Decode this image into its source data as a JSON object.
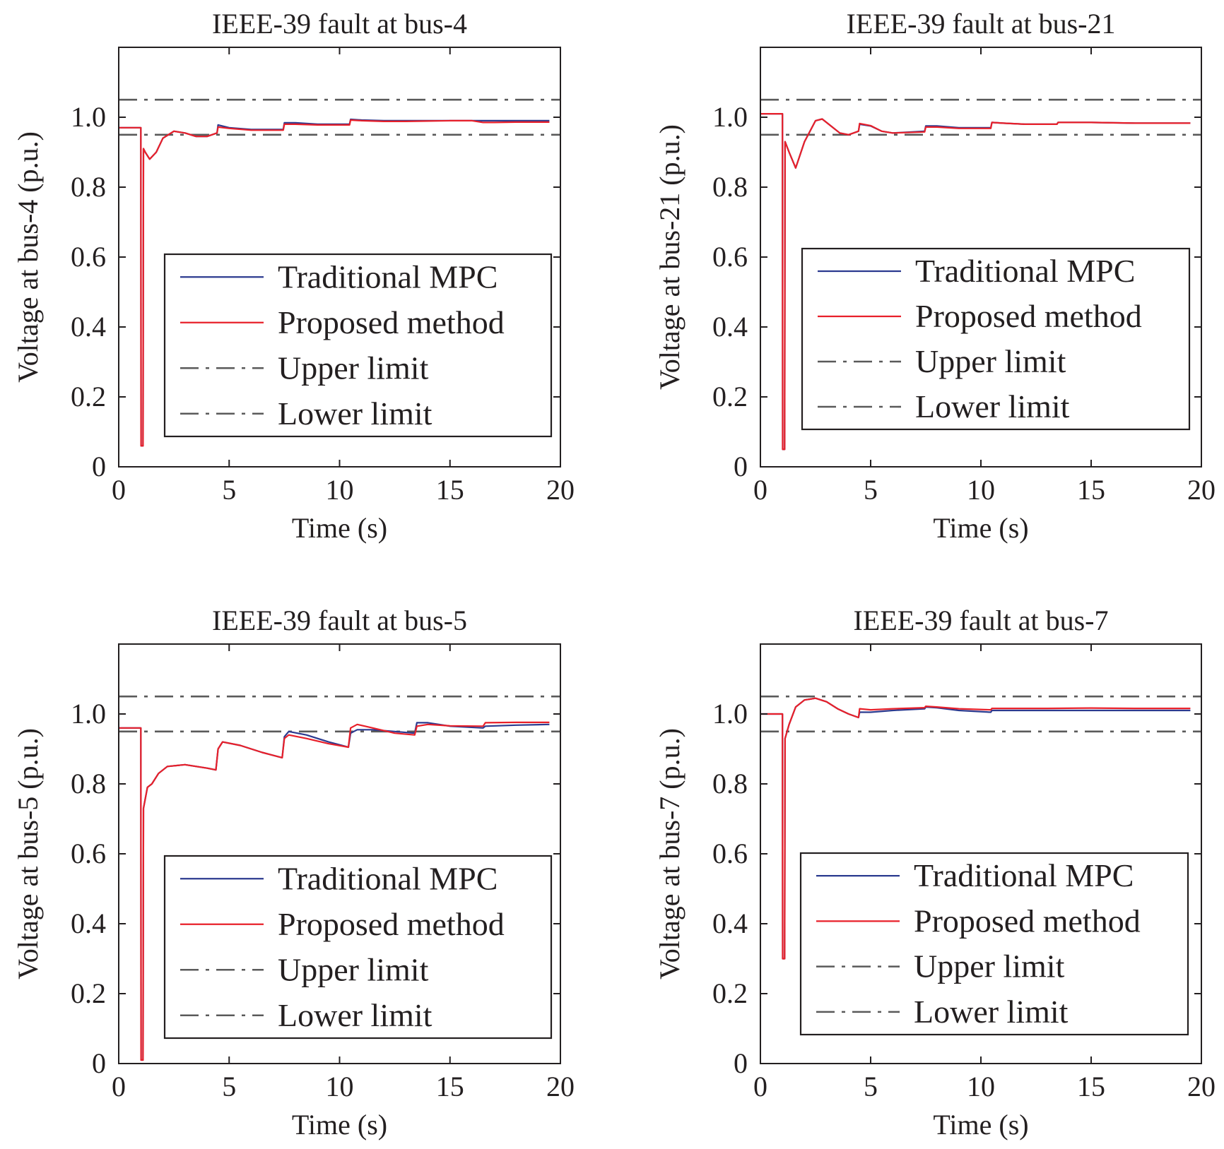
{
  "colors": {
    "traditional": "#2b3a8f",
    "proposed": "#e8202a",
    "limits": "#5a5a5a",
    "axes": "#231f20"
  },
  "chart_data": [
    {
      "type": "line",
      "title": "IEEE-39 fault at bus-4",
      "xlabel": "Time (s)",
      "ylabel": "Voltage at bus-4 (p.u.)",
      "xlim": [
        0,
        20
      ],
      "ylim": [
        0,
        1.2
      ],
      "xticks": [
        "0",
        "5",
        "10",
        "15",
        "20"
      ],
      "yticks": [
        "0",
        "0.2",
        "0.4",
        "0.6",
        "0.8",
        "1.0"
      ],
      "grid": false,
      "legend_position": "lower-right",
      "series": [
        {
          "name": "Traditional MPC",
          "style": "solid",
          "color_key": "traditional",
          "x": [
            0,
            1.0,
            1.01,
            1.05,
            1.1,
            1.12,
            1.2,
            1.4,
            1.7,
            2.0,
            2.5,
            3.0,
            3.5,
            4.0,
            4.45,
            4.5,
            5.0,
            6.0,
            7.45,
            7.5,
            8.0,
            9.0,
            10.45,
            10.5,
            11.0,
            12.0,
            13.0,
            14.0,
            15.0,
            16.0,
            17.0,
            18.0,
            19.5
          ],
          "y": [
            0.97,
            0.97,
            0.06,
            0.06,
            0.06,
            0.91,
            0.9,
            0.88,
            0.9,
            0.94,
            0.96,
            0.955,
            0.945,
            0.945,
            0.955,
            0.978,
            0.97,
            0.965,
            0.965,
            0.984,
            0.984,
            0.98,
            0.98,
            0.994,
            0.992,
            0.99,
            0.99,
            0.99,
            0.99,
            0.99,
            0.99,
            0.99,
            0.99
          ]
        },
        {
          "name": "Proposed method",
          "style": "solid",
          "color_key": "proposed",
          "x": [
            0,
            1.0,
            1.01,
            1.05,
            1.1,
            1.12,
            1.2,
            1.4,
            1.7,
            2.0,
            2.5,
            3.0,
            3.5,
            4.0,
            4.45,
            4.5,
            5.0,
            6.0,
            7.45,
            7.5,
            8.0,
            9.0,
            10.45,
            10.5,
            11.0,
            12.0,
            13.0,
            14.0,
            15.0,
            16.0,
            16.5,
            17.0,
            18.0,
            19.5
          ],
          "y": [
            0.97,
            0.97,
            0.06,
            0.06,
            0.06,
            0.91,
            0.9,
            0.88,
            0.9,
            0.94,
            0.96,
            0.955,
            0.945,
            0.945,
            0.955,
            0.972,
            0.968,
            0.963,
            0.963,
            0.98,
            0.98,
            0.978,
            0.978,
            0.992,
            0.99,
            0.988,
            0.988,
            0.989,
            0.99,
            0.99,
            0.985,
            0.985,
            0.986,
            0.986
          ]
        },
        {
          "name": "Upper limit",
          "style": "dashdot",
          "color_key": "limits",
          "x": [
            0,
            20
          ],
          "y": [
            1.05,
            1.05
          ]
        },
        {
          "name": "Lower limit",
          "style": "dashdot",
          "color_key": "limits",
          "x": [
            0,
            20
          ],
          "y": [
            0.95,
            0.95
          ]
        }
      ]
    },
    {
      "type": "line",
      "title": "IEEE-39 fault at bus-21",
      "xlabel": "Time (s)",
      "ylabel": "Voltage at bus-21 (p.u.)",
      "xlim": [
        0,
        20
      ],
      "ylim": [
        0,
        1.2
      ],
      "xticks": [
        "0",
        "5",
        "10",
        "15",
        "20"
      ],
      "yticks": [
        "0",
        "0.2",
        "0.4",
        "0.6",
        "0.8",
        "1.0"
      ],
      "grid": false,
      "legend_position": "lower-right",
      "series": [
        {
          "name": "Traditional MPC",
          "style": "solid",
          "color_key": "traditional",
          "x": [
            0,
            1.0,
            1.01,
            1.05,
            1.1,
            1.12,
            1.3,
            1.6,
            2.0,
            2.5,
            2.8,
            3.2,
            3.6,
            4.0,
            4.45,
            4.5,
            5.0,
            5.5,
            6.0,
            7.45,
            7.5,
            8.0,
            9.0,
            10.45,
            10.5,
            11.0,
            12.0,
            13.45,
            13.5,
            14.0,
            15.0,
            17.0,
            19.5
          ],
          "y": [
            1.01,
            1.01,
            0.05,
            0.05,
            0.05,
            0.93,
            0.9,
            0.855,
            0.93,
            0.99,
            0.995,
            0.975,
            0.955,
            0.95,
            0.96,
            0.98,
            0.975,
            0.96,
            0.955,
            0.96,
            0.975,
            0.975,
            0.97,
            0.97,
            0.985,
            0.983,
            0.98,
            0.98,
            0.985,
            0.985,
            0.985,
            0.983,
            0.983
          ]
        },
        {
          "name": "Proposed method",
          "style": "solid",
          "color_key": "proposed",
          "x": [
            0,
            1.0,
            1.01,
            1.05,
            1.1,
            1.12,
            1.3,
            1.6,
            2.0,
            2.5,
            2.8,
            3.2,
            3.6,
            4.0,
            4.45,
            4.5,
            5.0,
            5.5,
            6.0,
            7.45,
            7.5,
            8.0,
            9.0,
            10.45,
            10.5,
            11.0,
            12.0,
            13.45,
            13.5,
            14.0,
            15.0,
            17.0,
            19.5
          ],
          "y": [
            1.01,
            1.01,
            0.05,
            0.05,
            0.05,
            0.93,
            0.9,
            0.855,
            0.93,
            0.99,
            0.995,
            0.975,
            0.955,
            0.95,
            0.96,
            0.982,
            0.976,
            0.96,
            0.955,
            0.958,
            0.972,
            0.972,
            0.968,
            0.968,
            0.985,
            0.983,
            0.98,
            0.98,
            0.985,
            0.985,
            0.985,
            0.983,
            0.983
          ]
        },
        {
          "name": "Upper limit",
          "style": "dashdot",
          "color_key": "limits",
          "x": [
            0,
            20
          ],
          "y": [
            1.05,
            1.05
          ]
        },
        {
          "name": "Lower limit",
          "style": "dashdot",
          "color_key": "limits",
          "x": [
            0,
            20
          ],
          "y": [
            0.95,
            0.95
          ]
        }
      ]
    },
    {
      "type": "line",
      "title": "IEEE-39 fault at bus-5",
      "xlabel": "Time (s)",
      "ylabel": "Voltage at bus-5 (p.u.)",
      "xlim": [
        0,
        20
      ],
      "ylim": [
        0,
        1.2
      ],
      "xticks": [
        "0",
        "5",
        "10",
        "15",
        "20"
      ],
      "yticks": [
        "0",
        "0.2",
        "0.4",
        "0.6",
        "0.8",
        "1.0"
      ],
      "grid": false,
      "legend_position": "lower-right",
      "series": [
        {
          "name": "Traditional MPC",
          "style": "solid",
          "color_key": "traditional",
          "x": [
            0,
            1.0,
            1.01,
            1.05,
            1.1,
            1.12,
            1.3,
            1.5,
            1.8,
            2.2,
            3.0,
            4.0,
            4.4,
            4.5,
            4.7,
            5.5,
            6.5,
            7.4,
            7.5,
            7.7,
            8.5,
            9.5,
            10.4,
            10.5,
            10.8,
            11.5,
            12.5,
            13.4,
            13.5,
            14.0,
            15.0,
            16.5,
            16.6,
            18.0,
            19.5
          ],
          "y": [
            0.96,
            0.96,
            0.01,
            0.01,
            0.01,
            0.73,
            0.79,
            0.8,
            0.83,
            0.85,
            0.855,
            0.845,
            0.84,
            0.9,
            0.92,
            0.91,
            0.89,
            0.875,
            0.935,
            0.95,
            0.94,
            0.92,
            0.905,
            0.945,
            0.955,
            0.955,
            0.95,
            0.945,
            0.975,
            0.975,
            0.965,
            0.96,
            0.965,
            0.968,
            0.97
          ]
        },
        {
          "name": "Proposed method",
          "style": "solid",
          "color_key": "proposed",
          "x": [
            0,
            1.0,
            1.01,
            1.05,
            1.1,
            1.12,
            1.3,
            1.5,
            1.8,
            2.2,
            3.0,
            4.0,
            4.4,
            4.5,
            4.7,
            5.5,
            6.5,
            7.4,
            7.5,
            7.7,
            8.5,
            9.5,
            10.4,
            10.5,
            10.8,
            11.5,
            12.5,
            13.4,
            13.5,
            14.0,
            15.0,
            16.5,
            16.6,
            18.0,
            19.5
          ],
          "y": [
            0.96,
            0.96,
            0.01,
            0.01,
            0.01,
            0.73,
            0.79,
            0.8,
            0.83,
            0.85,
            0.855,
            0.845,
            0.84,
            0.9,
            0.92,
            0.91,
            0.89,
            0.875,
            0.93,
            0.94,
            0.93,
            0.915,
            0.905,
            0.96,
            0.97,
            0.96,
            0.945,
            0.94,
            0.965,
            0.97,
            0.966,
            0.965,
            0.975,
            0.976,
            0.976
          ]
        },
        {
          "name": "Upper limit",
          "style": "dashdot",
          "color_key": "limits",
          "x": [
            0,
            20
          ],
          "y": [
            1.05,
            1.05
          ]
        },
        {
          "name": "Lower limit",
          "style": "dashdot",
          "color_key": "limits",
          "x": [
            0,
            20
          ],
          "y": [
            0.95,
            0.95
          ]
        }
      ]
    },
    {
      "type": "line",
      "title": "IEEE-39 fault at bus-7",
      "xlabel": "Time (s)",
      "ylabel": "Voltage at bus-7 (p.u.)",
      "xlim": [
        0,
        20
      ],
      "ylim": [
        0,
        1.2
      ],
      "xticks": [
        "0",
        "5",
        "10",
        "15",
        "20"
      ],
      "yticks": [
        "0",
        "0.2",
        "0.4",
        "0.6",
        "0.8",
        "1.0"
      ],
      "grid": false,
      "legend_position": "lower-right",
      "series": [
        {
          "name": "Traditional MPC",
          "style": "solid",
          "color_key": "traditional",
          "x": [
            0,
            1.0,
            1.01,
            1.05,
            1.1,
            1.12,
            1.3,
            1.6,
            2.0,
            2.5,
            3.0,
            3.5,
            4.0,
            4.45,
            4.5,
            5.0,
            6.0,
            7.45,
            7.5,
            8.0,
            9.0,
            10.45,
            10.5,
            11.0,
            13.0,
            15.0,
            17.0,
            19.5
          ],
          "y": [
            1.0,
            1.0,
            0.3,
            0.3,
            0.3,
            0.93,
            0.97,
            1.02,
            1.04,
            1.045,
            1.035,
            1.015,
            1.0,
            0.99,
            1.005,
            1.005,
            1.01,
            1.015,
            1.02,
            1.018,
            1.01,
            1.005,
            1.01,
            1.01,
            1.01,
            1.01,
            1.01,
            1.01
          ]
        },
        {
          "name": "Proposed method",
          "style": "solid",
          "color_key": "proposed",
          "x": [
            0,
            1.0,
            1.01,
            1.05,
            1.1,
            1.12,
            1.3,
            1.6,
            2.0,
            2.5,
            3.0,
            3.5,
            4.0,
            4.45,
            4.5,
            5.0,
            6.0,
            7.45,
            7.5,
            8.0,
            9.0,
            10.45,
            10.5,
            11.0,
            13.0,
            15.0,
            17.0,
            19.5
          ],
          "y": [
            1.0,
            1.0,
            0.3,
            0.3,
            0.3,
            0.93,
            0.97,
            1.02,
            1.04,
            1.045,
            1.035,
            1.015,
            1.0,
            0.99,
            1.015,
            1.012,
            1.015,
            1.018,
            1.022,
            1.02,
            1.015,
            1.012,
            1.016,
            1.016,
            1.016,
            1.017,
            1.016,
            1.016
          ]
        },
        {
          "name": "Upper limit",
          "style": "dashdot",
          "color_key": "limits",
          "x": [
            0,
            20
          ],
          "y": [
            1.05,
            1.05
          ]
        },
        {
          "name": "Lower limit",
          "style": "dashdot",
          "color_key": "limits",
          "x": [
            0,
            20
          ],
          "y": [
            0.95,
            0.95
          ]
        }
      ]
    }
  ]
}
